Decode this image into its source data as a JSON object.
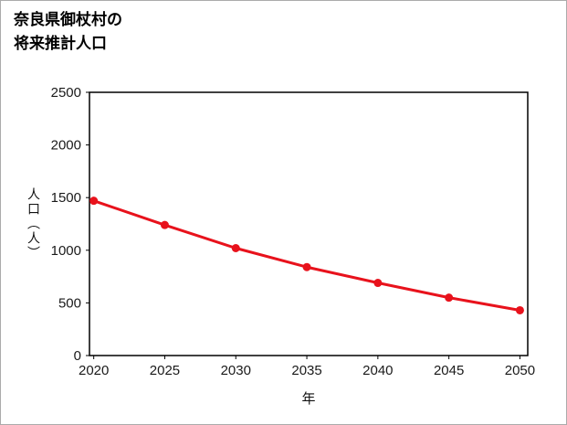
{
  "page": {
    "title_line1": "奈良県御杖村の",
    "title_line2": "将来推計人口"
  },
  "chart_data": {
    "type": "line",
    "title": "奈良県御杖村の将来推計人口",
    "xlabel": "年",
    "ylabel": "人口（人）",
    "x": [
      2020,
      2025,
      2030,
      2035,
      2040,
      2045,
      2050
    ],
    "series": [
      {
        "name": "将来推計人口",
        "values": [
          1470,
          1240,
          1020,
          840,
          690,
          550,
          430
        ]
      }
    ],
    "xlim": [
      2019.7,
      2050.55
    ],
    "ylim": [
      0,
      2500
    ],
    "y_ticks": [
      0,
      500,
      1000,
      1500,
      2000,
      2500
    ],
    "line_color": "#e8121c",
    "marker_color": "#e8121c",
    "axis_color": "#000000",
    "grid": false,
    "legend_position": "none"
  }
}
